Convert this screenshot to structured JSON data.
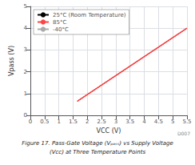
{
  "chart_data": {
    "type": "line",
    "x": [
      1.65,
      5.5
    ],
    "series": [
      {
        "name": "25°C (Room Temperature)",
        "color": "#000000",
        "values": [
          0.65,
          4.0
        ]
      },
      {
        "name": "85°C",
        "color": "#ff4444",
        "values": [
          0.65,
          4.0
        ]
      },
      {
        "name": "-40°C",
        "color": "#aaaaaa",
        "values": [
          0.65,
          4.0
        ]
      }
    ],
    "xlabel": "VCC (V)",
    "ylabel": "Vpass (V)",
    "xlim": [
      0,
      5.5
    ],
    "ylim": [
      0,
      5
    ],
    "xticks": [
      0,
      0.5,
      1,
      1.5,
      2,
      2.5,
      3,
      3.5,
      4,
      4.5,
      5,
      5.5
    ],
    "yticks": [
      0,
      1,
      2,
      3,
      4,
      5
    ],
    "grid": true,
    "legend": "upper left",
    "annotations": [
      "Figure 17. Pass-Gate Voltage (Vₚₐₛₛ) vs Supply Voltage",
      "(Vᴄᴄ) at Three Temperature Points",
      "D007"
    ]
  }
}
